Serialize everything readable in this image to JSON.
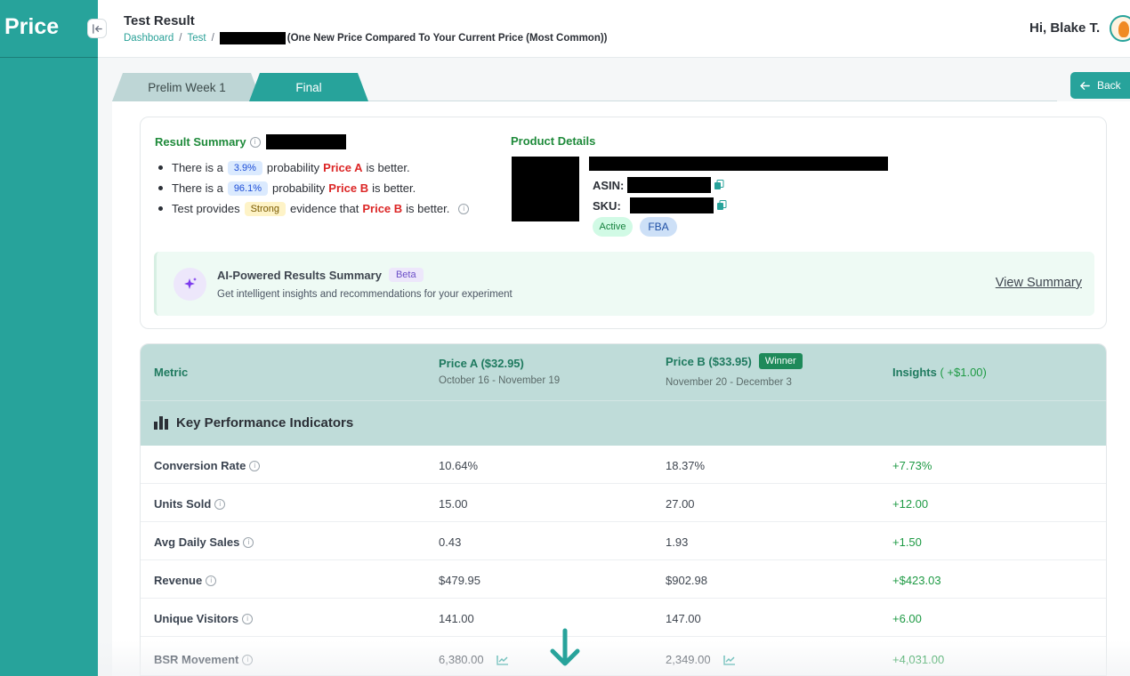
{
  "sidebar": {
    "brand": "Price"
  },
  "header": {
    "title": "Test Result",
    "breadcrumb": {
      "home": "Dashboard",
      "section": "Test",
      "current": "(One New Price Compared To Your Current Price (Most Common))"
    },
    "greeting": "Hi, Blake T."
  },
  "tabs": [
    {
      "label": "Prelim Week 1",
      "active": false
    },
    {
      "label": "Final",
      "active": true
    }
  ],
  "back_label": "Back",
  "result_summary": {
    "title": "Result Summary",
    "lines": [
      {
        "pre": "There is a",
        "pill": "3.9%",
        "mid": "probability",
        "price": "Price A",
        "post": "is better."
      },
      {
        "pre": "There is a",
        "pill": "96.1%",
        "mid": "probability",
        "price": "Price B",
        "post": "is better."
      },
      {
        "pre": "Test provides",
        "pill": "Strong",
        "mid": "evidence that",
        "price": "Price B",
        "post": "is better."
      }
    ]
  },
  "product_details": {
    "title": "Product Details",
    "asin_label": "ASIN:",
    "sku_label": "SKU:",
    "status_badge": "Active",
    "fulfillment_badge": "FBA"
  },
  "ai_summary": {
    "title": "AI-Powered Results Summary",
    "beta": "Beta",
    "subtitle": "Get intelligent insights and recommendations for your experiment",
    "link": "View Summary"
  },
  "table": {
    "headers": {
      "metric": "Metric",
      "price_a": "Price A ($32.95)",
      "price_a_dates": "October 16 - November 19",
      "price_b": "Price B ($33.95)",
      "winner": "Winner",
      "price_b_dates": "November 20 - December 3",
      "insights": "Insights",
      "insights_delta": "( +$1.00)"
    },
    "section": "Key Performance Indicators",
    "rows": [
      {
        "metric": "Conversion Rate",
        "a": "10.64%",
        "b": "18.37%",
        "insight": "+7.73%"
      },
      {
        "metric": "Units Sold",
        "a": "15.00",
        "b": "27.00",
        "insight": "+12.00"
      },
      {
        "metric": "Avg Daily Sales",
        "a": "0.43",
        "b": "1.93",
        "insight": "+1.50"
      },
      {
        "metric": "Revenue",
        "a": "$479.95",
        "b": "$902.98",
        "insight": "+$423.03"
      },
      {
        "metric": "Unique Visitors",
        "a": "141.00",
        "b": "147.00",
        "insight": "+6.00"
      },
      {
        "metric": "BSR Movement",
        "a": "6,380.00",
        "b": "2,349.00",
        "insight": "+4,031.00"
      }
    ]
  },
  "colors": {
    "brand": "#27a39b",
    "winner": "#1e8a5a",
    "positive": "#1e9a44",
    "price_red": "#dc2626"
  }
}
